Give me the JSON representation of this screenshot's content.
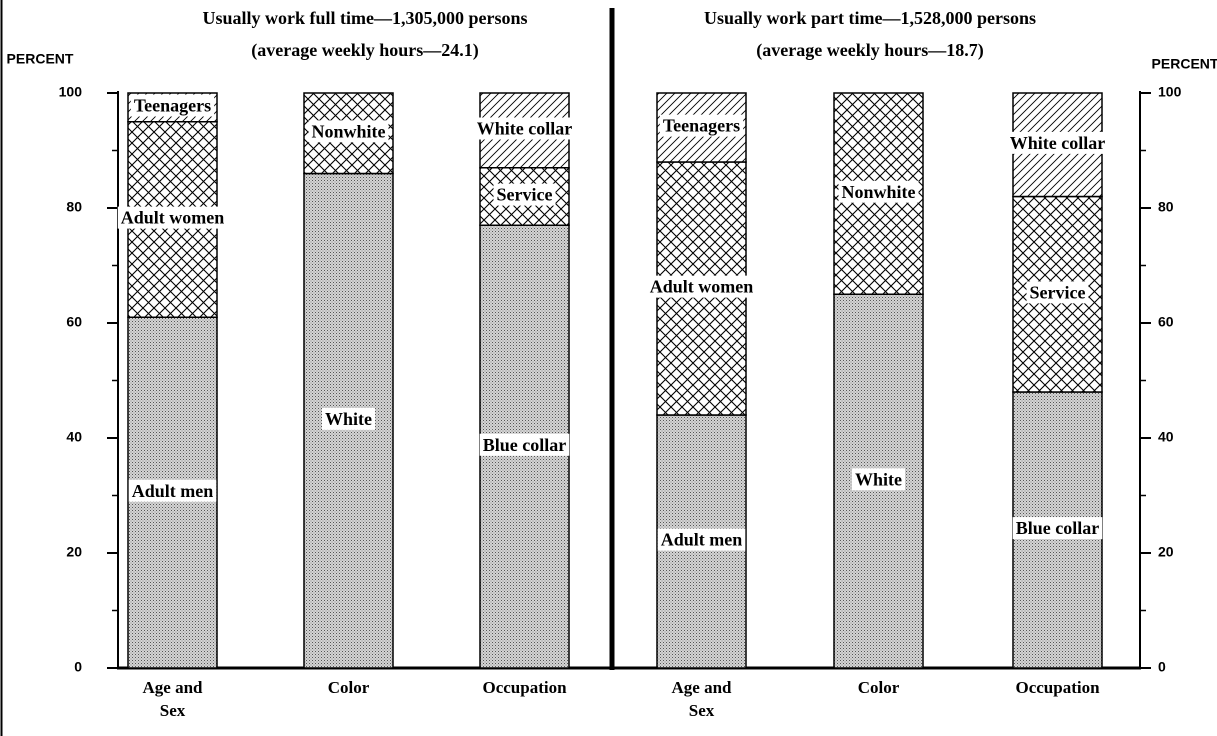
{
  "chart_data": [
    {
      "type": "stacked_bar",
      "title": "Usually work full time—1,305,000 persons",
      "subtitle": "(average weekly hours—24.1)",
      "y_label": "PERCENT",
      "axis_side": "left",
      "ylim": [
        0,
        100
      ],
      "yticks": [
        0,
        20,
        40,
        60,
        80,
        100
      ],
      "minor_yticks": [
        10,
        30,
        50,
        70,
        90
      ],
      "categories": [
        "Age and Sex",
        "Color",
        "Occupation"
      ],
      "bars": [
        {
          "segments": [
            {
              "name": "Adult men",
              "value": 61,
              "pattern": "dots"
            },
            {
              "name": "Adult women",
              "value": 34,
              "pattern": "crosshatch"
            },
            {
              "name": "Teenagers",
              "value": 5,
              "pattern": "hatch"
            }
          ]
        },
        {
          "segments": [
            {
              "name": "White",
              "value": 86,
              "pattern": "dots"
            },
            {
              "name": "Nonwhite",
              "value": 14,
              "pattern": "crosshatch"
            }
          ]
        },
        {
          "segments": [
            {
              "name": "Blue collar",
              "value": 77,
              "pattern": "dots"
            },
            {
              "name": "Service",
              "value": 10,
              "pattern": "crosshatch"
            },
            {
              "name": "White collar",
              "value": 13,
              "pattern": "hatch"
            }
          ]
        }
      ]
    },
    {
      "type": "stacked_bar",
      "title": "Usually work part time—1,528,000 persons",
      "subtitle": "(average weekly hours—18.7)",
      "y_label": "PERCENT",
      "axis_side": "right",
      "ylim": [
        0,
        100
      ],
      "yticks": [
        0,
        20,
        40,
        60,
        80,
        100
      ],
      "minor_yticks": [
        10,
        30,
        50,
        70,
        90
      ],
      "categories": [
        "Age and Sex",
        "Color",
        "Occupation"
      ],
      "bars": [
        {
          "segments": [
            {
              "name": "Adult men",
              "value": 44,
              "pattern": "dots"
            },
            {
              "name": "Adult women",
              "value": 44,
              "pattern": "crosshatch"
            },
            {
              "name": "Teenagers",
              "value": 12,
              "pattern": "hatch"
            }
          ]
        },
        {
          "segments": [
            {
              "name": "White",
              "value": 65,
              "pattern": "dots"
            },
            {
              "name": "Nonwhite",
              "value": 35,
              "pattern": "crosshatch"
            }
          ]
        },
        {
          "segments": [
            {
              "name": "Blue collar",
              "value": 48,
              "pattern": "dots"
            },
            {
              "name": "Service",
              "value": 34,
              "pattern": "crosshatch"
            },
            {
              "name": "White collar",
              "value": 18,
              "pattern": "hatch"
            }
          ]
        }
      ]
    }
  ]
}
